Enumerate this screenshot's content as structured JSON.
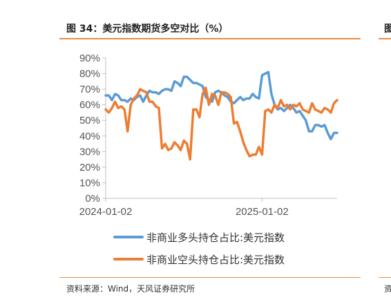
{
  "figure": {
    "title": "图 34：美元指数期货多空对比（%）",
    "source": "资料来源：Wind，天风证券研究所",
    "right_edge_title_glyph": "图",
    "right_edge_source_glyph": "资"
  },
  "chart_data": {
    "type": "line",
    "title": "",
    "xlabel": "",
    "ylabel": "",
    "ylim": [
      0,
      90
    ],
    "yticks": [
      "0%",
      "10%",
      "20%",
      "30%",
      "40%",
      "50%",
      "60%",
      "70%",
      "80%",
      "90%"
    ],
    "x_tick_labels": [
      "2024-01-02",
      "2025-01-02"
    ],
    "x_tick_positions": [
      0,
      1
    ],
    "x_range": [
      0,
      1.48
    ],
    "grid": false,
    "legend_position": "bottom",
    "series": [
      {
        "name": "非商业多头持仓占比:美元指数",
        "color": "#5b9bd5",
        "x": [
          0,
          0.02,
          0.04,
          0.06,
          0.08,
          0.1,
          0.12,
          0.14,
          0.16,
          0.18,
          0.2,
          0.22,
          0.24,
          0.26,
          0.28,
          0.3,
          0.32,
          0.34,
          0.36,
          0.38,
          0.4,
          0.42,
          0.44,
          0.46,
          0.48,
          0.5,
          0.52,
          0.54,
          0.56,
          0.58,
          0.6,
          0.62,
          0.64,
          0.66,
          0.68,
          0.7,
          0.72,
          0.74,
          0.76,
          0.78,
          0.8,
          0.82,
          0.84,
          0.86,
          0.88,
          0.9,
          0.92,
          0.94,
          0.96,
          0.98,
          1.0,
          1.02,
          1.04,
          1.06,
          1.08,
          1.1,
          1.12,
          1.14,
          1.16,
          1.18,
          1.2,
          1.22,
          1.24,
          1.26,
          1.28,
          1.3,
          1.32,
          1.34,
          1.36,
          1.38,
          1.4,
          1.42,
          1.44,
          1.46,
          1.48
        ],
        "values": [
          66,
          66,
          63,
          67,
          66,
          63,
          63,
          62,
          64,
          63,
          65,
          66,
          62,
          66,
          69,
          68,
          68,
          67,
          69,
          70,
          70,
          69,
          75,
          74,
          72,
          78,
          78,
          76,
          74,
          74,
          73,
          72,
          65,
          63,
          62,
          68,
          69,
          68,
          66,
          65,
          62,
          61,
          63,
          65,
          63,
          64,
          64,
          67,
          65,
          64,
          79,
          80,
          81,
          67,
          60,
          57,
          58,
          56,
          58,
          60,
          58,
          55,
          56,
          53,
          50,
          43,
          43,
          47,
          47,
          46,
          47,
          42,
          38,
          42,
          42
        ]
      },
      {
        "name": "非商业空头持仓占比:美元指数",
        "color": "#ed7d31",
        "x": [
          0,
          0.02,
          0.04,
          0.06,
          0.08,
          0.1,
          0.12,
          0.14,
          0.16,
          0.18,
          0.2,
          0.22,
          0.24,
          0.26,
          0.28,
          0.3,
          0.32,
          0.34,
          0.36,
          0.38,
          0.4,
          0.42,
          0.44,
          0.46,
          0.48,
          0.5,
          0.52,
          0.54,
          0.56,
          0.58,
          0.6,
          0.62,
          0.64,
          0.66,
          0.68,
          0.7,
          0.72,
          0.74,
          0.76,
          0.78,
          0.8,
          0.82,
          0.84,
          0.86,
          0.88,
          0.9,
          0.92,
          0.94,
          0.96,
          0.98,
          1.0,
          1.02,
          1.04,
          1.06,
          1.08,
          1.1,
          1.12,
          1.14,
          1.16,
          1.18,
          1.2,
          1.22,
          1.24,
          1.26,
          1.28,
          1.3,
          1.32,
          1.34,
          1.36,
          1.38,
          1.4,
          1.42,
          1.44,
          1.46,
          1.48
        ],
        "values": [
          57,
          55,
          58,
          62,
          58,
          59,
          57,
          43,
          60,
          64,
          66,
          70,
          69,
          68,
          62,
          62,
          59,
          58,
          32,
          35,
          31,
          32,
          36,
          34,
          31,
          37,
          35,
          25,
          57,
          57,
          52,
          67,
          71,
          60,
          67,
          66,
          60,
          68,
          68,
          67,
          65,
          48,
          49,
          43,
          36,
          31,
          27,
          28,
          28,
          33,
          28,
          56,
          57,
          55,
          60,
          58,
          63,
          59,
          60,
          57,
          60,
          59,
          61,
          57,
          56,
          55,
          61,
          57,
          56,
          55,
          58,
          57,
          55,
          61,
          63
        ]
      }
    ]
  }
}
